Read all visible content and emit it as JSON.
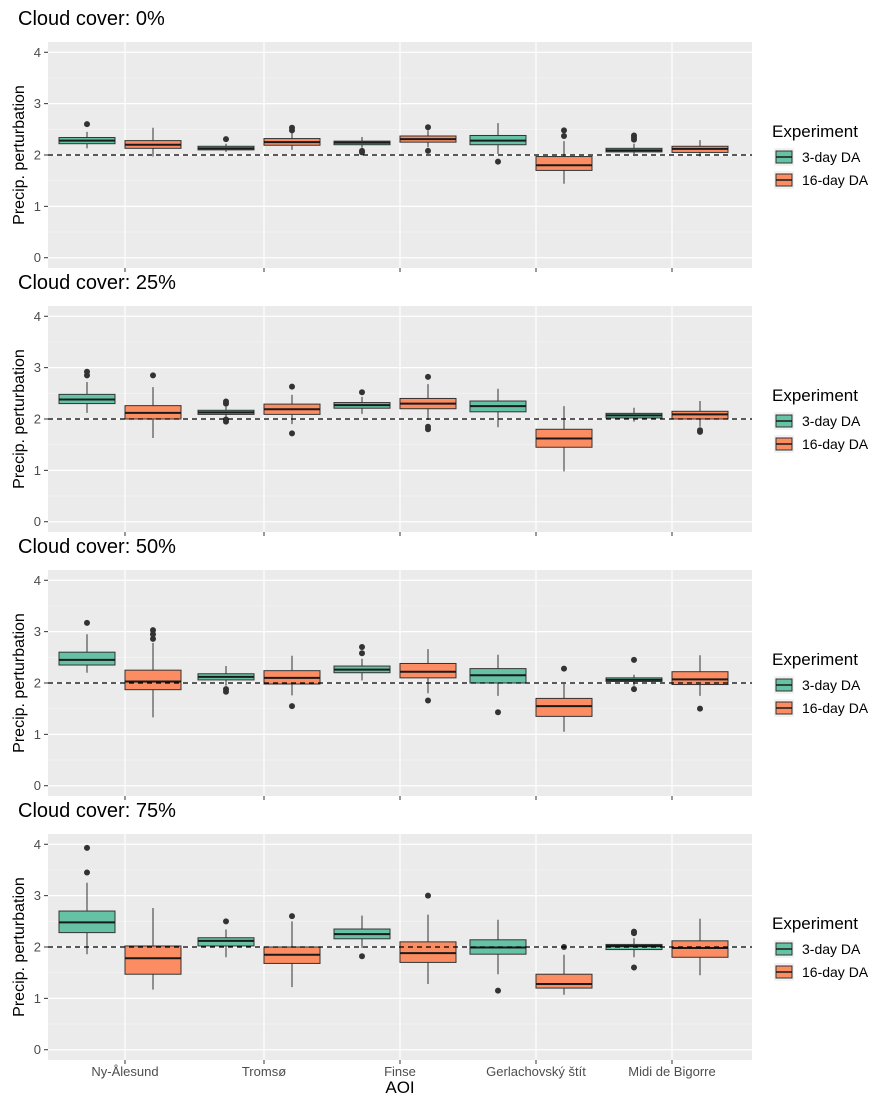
{
  "chart_data": {
    "type": "boxplot",
    "categories": [
      "Ny-Ålesund",
      "Tromsø",
      "Finse",
      "Gerlachovský štít",
      "Midi de Bigorre"
    ],
    "xlabel": "AOI",
    "ylabel": "Precip. perturbation",
    "ylim": [
      -0.2,
      4.2
    ],
    "yticks": [
      "0",
      "1",
      "2",
      "3",
      "4"
    ],
    "reference_line": 2,
    "legend": {
      "title": "Experiment",
      "placement": "right",
      "entries": [
        {
          "name": "3-day DA",
          "color": "#66c2a5"
        },
        {
          "name": "16-day DA",
          "color": "#fc8d62"
        }
      ]
    },
    "panels": [
      {
        "title": "Cloud cover: 0%",
        "series": [
          {
            "name": "3-day DA",
            "boxes": [
              {
                "lo": 2.13,
                "q1": 2.22,
                "med": 2.28,
                "q3": 2.34,
                "hi": 2.45,
                "out": [
                  2.6
                ]
              },
              {
                "lo": 2.06,
                "q1": 2.1,
                "med": 2.13,
                "q3": 2.17,
                "hi": 2.22,
                "out": [
                  2.31
                ]
              },
              {
                "lo": 2.14,
                "q1": 2.2,
                "med": 2.24,
                "q3": 2.27,
                "hi": 2.35,
                "out": [
                  2.05,
                  2.08
                ]
              },
              {
                "lo": 2.02,
                "q1": 2.2,
                "med": 2.28,
                "q3": 2.38,
                "hi": 2.62,
                "out": [
                  1.87
                ]
              },
              {
                "lo": 2.02,
                "q1": 2.06,
                "med": 2.09,
                "q3": 2.13,
                "hi": 2.22,
                "out": [
                  2.3,
                  2.34,
                  2.38
                ]
              }
            ]
          },
          {
            "name": "16-day DA",
            "boxes": [
              {
                "lo": 1.97,
                "q1": 2.13,
                "med": 2.2,
                "q3": 2.28,
                "hi": 2.53,
                "out": []
              },
              {
                "lo": 2.1,
                "q1": 2.19,
                "med": 2.25,
                "q3": 2.32,
                "hi": 2.44,
                "out": [
                  2.48,
                  2.53
                ]
              },
              {
                "lo": 2.15,
                "q1": 2.25,
                "med": 2.31,
                "q3": 2.37,
                "hi": 2.48,
                "out": [
                  2.08,
                  2.54
                ]
              },
              {
                "lo": 1.44,
                "q1": 1.7,
                "med": 1.8,
                "q3": 1.97,
                "hi": 2.27,
                "out": [
                  2.37,
                  2.48
                ]
              },
              {
                "lo": 1.97,
                "q1": 2.05,
                "med": 2.12,
                "q3": 2.17,
                "hi": 2.29,
                "out": []
              }
            ]
          }
        ]
      },
      {
        "title": "Cloud cover: 25%",
        "series": [
          {
            "name": "3-day DA",
            "boxes": [
              {
                "lo": 2.12,
                "q1": 2.3,
                "med": 2.38,
                "q3": 2.48,
                "hi": 2.72,
                "out": [
                  2.85,
                  2.92
                ]
              },
              {
                "lo": 2.04,
                "q1": 2.09,
                "med": 2.13,
                "q3": 2.17,
                "hi": 2.24,
                "out": [
                  1.95,
                  1.99,
                  2.3,
                  2.34
                ]
              },
              {
                "lo": 2.1,
                "q1": 2.21,
                "med": 2.27,
                "q3": 2.32,
                "hi": 2.43,
                "out": [
                  2.52
                ]
              },
              {
                "lo": 1.84,
                "q1": 2.14,
                "med": 2.25,
                "q3": 2.35,
                "hi": 2.59,
                "out": []
              },
              {
                "lo": 1.95,
                "q1": 2.02,
                "med": 2.07,
                "q3": 2.11,
                "hi": 2.22,
                "out": []
              }
            ]
          },
          {
            "name": "16-day DA",
            "boxes": [
              {
                "lo": 1.63,
                "q1": 2.0,
                "med": 2.12,
                "q3": 2.26,
                "hi": 2.62,
                "out": [
                  2.85
                ]
              },
              {
                "lo": 1.9,
                "q1": 2.09,
                "med": 2.19,
                "q3": 2.29,
                "hi": 2.47,
                "out": [
                  1.72,
                  2.63
                ]
              },
              {
                "lo": 1.98,
                "q1": 2.2,
                "med": 2.3,
                "q3": 2.4,
                "hi": 2.68,
                "out": [
                  1.8,
                  1.85,
                  2.82
                ]
              },
              {
                "lo": 0.98,
                "q1": 1.45,
                "med": 1.62,
                "q3": 1.8,
                "hi": 2.25,
                "out": []
              },
              {
                "lo": 1.85,
                "q1": 2.0,
                "med": 2.09,
                "q3": 2.15,
                "hi": 2.35,
                "out": [
                  1.75,
                  1.78
                ]
              }
            ]
          }
        ]
      },
      {
        "title": "Cloud cover: 50%",
        "series": [
          {
            "name": "3-day DA",
            "boxes": [
              {
                "lo": 2.2,
                "q1": 2.35,
                "med": 2.45,
                "q3": 2.6,
                "hi": 2.95,
                "out": [
                  3.17
                ]
              },
              {
                "lo": 1.95,
                "q1": 2.06,
                "med": 2.12,
                "q3": 2.18,
                "hi": 2.33,
                "out": [
                  1.83,
                  1.88
                ]
              },
              {
                "lo": 2.05,
                "q1": 2.2,
                "med": 2.26,
                "q3": 2.33,
                "hi": 2.47,
                "out": [
                  2.58,
                  2.7
                ]
              },
              {
                "lo": 1.75,
                "q1": 2.0,
                "med": 2.15,
                "q3": 2.28,
                "hi": 2.55,
                "out": [
                  1.43
                ]
              },
              {
                "lo": 1.95,
                "q1": 2.03,
                "med": 2.06,
                "q3": 2.1,
                "hi": 2.16,
                "out": [
                  1.88,
                  2.45
                ]
              }
            ]
          },
          {
            "name": "16-day DA",
            "boxes": [
              {
                "lo": 1.33,
                "q1": 1.87,
                "med": 2.03,
                "q3": 2.25,
                "hi": 2.78,
                "out": [
                  2.86,
                  2.95,
                  3.03
                ]
              },
              {
                "lo": 1.76,
                "q1": 1.98,
                "med": 2.1,
                "q3": 2.24,
                "hi": 2.53,
                "out": [
                  1.55
                ]
              },
              {
                "lo": 1.8,
                "q1": 2.1,
                "med": 2.22,
                "q3": 2.38,
                "hi": 2.66,
                "out": [
                  1.66
                ]
              },
              {
                "lo": 1.05,
                "q1": 1.35,
                "med": 1.55,
                "q3": 1.7,
                "hi": 1.98,
                "out": [
                  2.28
                ]
              },
              {
                "lo": 1.75,
                "q1": 1.97,
                "med": 2.07,
                "q3": 2.22,
                "hi": 2.54,
                "out": [
                  1.5
                ]
              }
            ]
          }
        ]
      },
      {
        "title": "Cloud cover: 75%",
        "series": [
          {
            "name": "3-day DA",
            "boxes": [
              {
                "lo": 1.86,
                "q1": 2.28,
                "med": 2.48,
                "q3": 2.7,
                "hi": 3.25,
                "out": [
                  3.45,
                  3.93
                ]
              },
              {
                "lo": 1.8,
                "q1": 2.02,
                "med": 2.12,
                "q3": 2.18,
                "hi": 2.34,
                "out": [
                  2.5
                ]
              },
              {
                "lo": 1.98,
                "q1": 2.16,
                "med": 2.25,
                "q3": 2.35,
                "hi": 2.61,
                "out": [
                  1.82
                ]
              },
              {
                "lo": 1.47,
                "q1": 1.86,
                "med": 1.99,
                "q3": 2.14,
                "hi": 2.53,
                "out": [
                  1.15
                ]
              },
              {
                "lo": 1.8,
                "q1": 1.95,
                "med": 2.02,
                "q3": 2.05,
                "hi": 2.17,
                "out": [
                  1.6,
                  2.27,
                  2.3
                ]
              }
            ]
          },
          {
            "name": "16-day DA",
            "boxes": [
              {
                "lo": 1.17,
                "q1": 1.47,
                "med": 1.78,
                "q3": 2.02,
                "hi": 2.76,
                "out": []
              },
              {
                "lo": 1.22,
                "q1": 1.68,
                "med": 1.85,
                "q3": 2.0,
                "hi": 2.5,
                "out": [
                  2.6
                ]
              },
              {
                "lo": 1.28,
                "q1": 1.7,
                "med": 1.88,
                "q3": 2.1,
                "hi": 2.63,
                "out": [
                  3.0
                ]
              },
              {
                "lo": 1.07,
                "q1": 1.2,
                "med": 1.28,
                "q3": 1.47,
                "hi": 1.85,
                "out": [
                  2.0
                ]
              },
              {
                "lo": 1.45,
                "q1": 1.8,
                "med": 1.98,
                "q3": 2.12,
                "hi": 2.55,
                "out": []
              }
            ]
          }
        ]
      }
    ]
  }
}
